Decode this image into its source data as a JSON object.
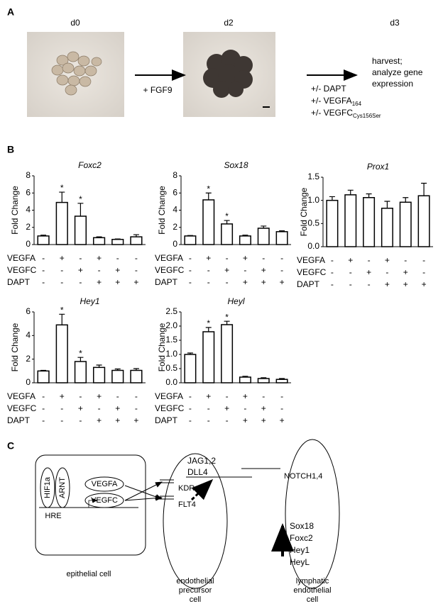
{
  "panel_labels": [
    "A",
    "B",
    "C"
  ],
  "panel_a": {
    "days": [
      "d0",
      "d2",
      "d3"
    ],
    "step1": "+ FGF9",
    "treatments": [
      {
        "text": "+/- DAPT"
      },
      {
        "text": "+/- VEGFA",
        "sub": "164"
      },
      {
        "text": "+/- VEGFC",
        "sub": "Cys156Ser"
      }
    ],
    "outcome": [
      "harvest;",
      "analyze gene",
      "expression"
    ]
  },
  "chart_data": [
    {
      "type": "bar",
      "title": "Foxc2",
      "ylabel": "Fold Change",
      "values": [
        1.0,
        4.9,
        3.3,
        0.8,
        0.6,
        0.9
      ],
      "errors": [
        0.1,
        1.2,
        1.5,
        0.1,
        0.05,
        0.25
      ],
      "significance": [
        null,
        "*",
        "*",
        null,
        null,
        null
      ],
      "ylim": [
        0,
        8
      ],
      "yticks": [
        0,
        2,
        4,
        6,
        8
      ],
      "conditions": [
        {
          "name": "VEGFA",
          "marks": [
            "-",
            "+",
            "-",
            "+",
            "-",
            "-"
          ]
        },
        {
          "name": "VEGFC",
          "marks": [
            "-",
            "-",
            "+",
            "-",
            "+",
            "-"
          ]
        },
        {
          "name": "DAPT",
          "marks": [
            "-",
            "-",
            "-",
            "+",
            "+",
            "+"
          ]
        }
      ]
    },
    {
      "type": "bar",
      "title": "Sox18",
      "ylabel": "Fold Change",
      "values": [
        1.0,
        5.2,
        2.4,
        1.0,
        1.9,
        1.5
      ],
      "errors": [
        0.05,
        0.8,
        0.4,
        0.1,
        0.25,
        0.1
      ],
      "significance": [
        null,
        "*",
        "*",
        null,
        null,
        null
      ],
      "ylim": [
        0,
        8
      ],
      "yticks": [
        0,
        2,
        4,
        6,
        8
      ],
      "conditions": [
        {
          "name": "VEGFA",
          "marks": [
            "-",
            "+",
            "-",
            "+",
            "-",
            "-"
          ]
        },
        {
          "name": "VEGFC",
          "marks": [
            "-",
            "-",
            "+",
            "-",
            "+",
            "-"
          ]
        },
        {
          "name": "DAPT",
          "marks": [
            "-",
            "-",
            "-",
            "+",
            "+",
            "+"
          ]
        }
      ]
    },
    {
      "type": "bar",
      "title": "Prox1",
      "ylabel": "Fold Change",
      "values": [
        1.0,
        1.12,
        1.06,
        0.83,
        0.96,
        1.1
      ],
      "errors": [
        0.08,
        0.1,
        0.08,
        0.15,
        0.1,
        0.27
      ],
      "significance": [
        null,
        null,
        null,
        null,
        null,
        null
      ],
      "ylim": [
        0,
        1.5
      ],
      "yticks": [
        {
          "value": 0,
          "label": "0.0"
        },
        0.5,
        {
          "value": 1,
          "label": "1.0"
        },
        1.5
      ],
      "conditions": [
        {
          "name": "VEGFA",
          "marks": [
            "-",
            "+",
            "-",
            "+",
            "-",
            "-"
          ]
        },
        {
          "name": "VEGFC",
          "marks": [
            "-",
            "-",
            "+",
            "-",
            "+",
            "-"
          ]
        },
        {
          "name": "DAPT",
          "marks": [
            "-",
            "-",
            "-",
            "+",
            "+",
            "+"
          ]
        }
      ]
    },
    {
      "type": "bar",
      "title": "Hey1",
      "ylabel": "Fold Change",
      "values": [
        1.0,
        4.9,
        1.8,
        1.3,
        1.05,
        1.05
      ],
      "errors": [
        0.05,
        0.9,
        0.35,
        0.2,
        0.12,
        0.15
      ],
      "significance": [
        null,
        "*",
        "*",
        null,
        null,
        null
      ],
      "ylim": [
        0,
        6
      ],
      "yticks": [
        0,
        2,
        4,
        6
      ],
      "conditions": [
        {
          "name": "VEGFA",
          "marks": [
            "-",
            "+",
            "-",
            "+",
            "-",
            "-"
          ]
        },
        {
          "name": "VEGFC",
          "marks": [
            "-",
            "-",
            "+",
            "-",
            "+",
            "-"
          ]
        },
        {
          "name": "DAPT",
          "marks": [
            "-",
            "-",
            "-",
            "+",
            "+",
            "+"
          ]
        }
      ]
    },
    {
      "type": "bar",
      "title": "Heyl",
      "ylabel": "Fold Change",
      "values": [
        1.0,
        1.8,
        2.05,
        0.2,
        0.15,
        0.12
      ],
      "errors": [
        0.05,
        0.15,
        0.12,
        0.03,
        0.03,
        0.03
      ],
      "significance": [
        null,
        "*",
        "*",
        null,
        null,
        null
      ],
      "ylim": [
        0,
        2.5
      ],
      "yticks": [
        {
          "value": 0,
          "label": "0.0"
        },
        0.5,
        {
          "value": 1,
          "label": "1.0"
        },
        1.5,
        {
          "value": 2,
          "label": "2.0"
        },
        2.5
      ],
      "conditions": [
        {
          "name": "VEGFA",
          "marks": [
            "-",
            "+",
            "-",
            "+",
            "-",
            "-"
          ]
        },
        {
          "name": "VEGFC",
          "marks": [
            "-",
            "-",
            "+",
            "-",
            "+",
            "-"
          ]
        },
        {
          "name": "DAPT",
          "marks": [
            "-",
            "-",
            "-",
            "+",
            "+",
            "+"
          ]
        }
      ]
    }
  ],
  "panel_c": {
    "epithelial": {
      "hif": "HIF1a",
      "arnt": "ARNT",
      "hre": "HRE",
      "vegfa": "VEGFA",
      "vegfc": "VEGFC",
      "label": "epithelial cell"
    },
    "precursor": {
      "kdr": "KDR",
      "flt4": "FLT4",
      "ligands": [
        "JAG1,2",
        "DLL4"
      ],
      "label": [
        "endothelial",
        "precursor",
        "cell"
      ]
    },
    "lymphatic": {
      "notch": "NOTCH1,4",
      "genes": [
        "Sox18",
        "Foxc2",
        "Hey1",
        "HeyL"
      ],
      "label": [
        "lymphatic",
        "endothelial",
        "cell"
      ]
    }
  }
}
